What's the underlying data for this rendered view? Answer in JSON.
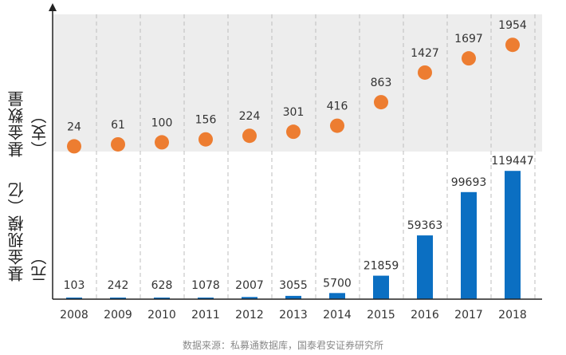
{
  "chart_data": [
    {
      "type": "scatter",
      "panel": "top",
      "ylabel": "基金数量（支）",
      "categories": [
        "2008",
        "2009",
        "2010",
        "2011",
        "2012",
        "2013",
        "2014",
        "2015",
        "2016",
        "2017",
        "2018"
      ],
      "values": [
        24,
        61,
        100,
        156,
        224,
        301,
        416,
        863,
        1427,
        1697,
        1954
      ],
      "ylim": [
        0,
        2200
      ],
      "grid": "vertical-dashed",
      "background": "shaded"
    },
    {
      "type": "bar",
      "panel": "bottom",
      "ylabel": "基金规模（亿元）",
      "categories": [
        "2008",
        "2009",
        "2010",
        "2011",
        "2012",
        "2013",
        "2014",
        "2015",
        "2016",
        "2017",
        "2018"
      ],
      "values": [
        103,
        242,
        628,
        1078,
        2007,
        3055,
        5700,
        21859,
        59363,
        99693,
        119447
      ],
      "ylim": [
        0,
        130000
      ],
      "grid": "vertical-dashed"
    }
  ],
  "source_note": "数据来源：私募通数据库，国泰君安证券研究所",
  "colors": {
    "dot": "#ed7d31",
    "bar": "#0b6fc2",
    "shade": "#ededed",
    "axis": "#222222",
    "grid": "#bdbdbd",
    "label": "#333333"
  }
}
